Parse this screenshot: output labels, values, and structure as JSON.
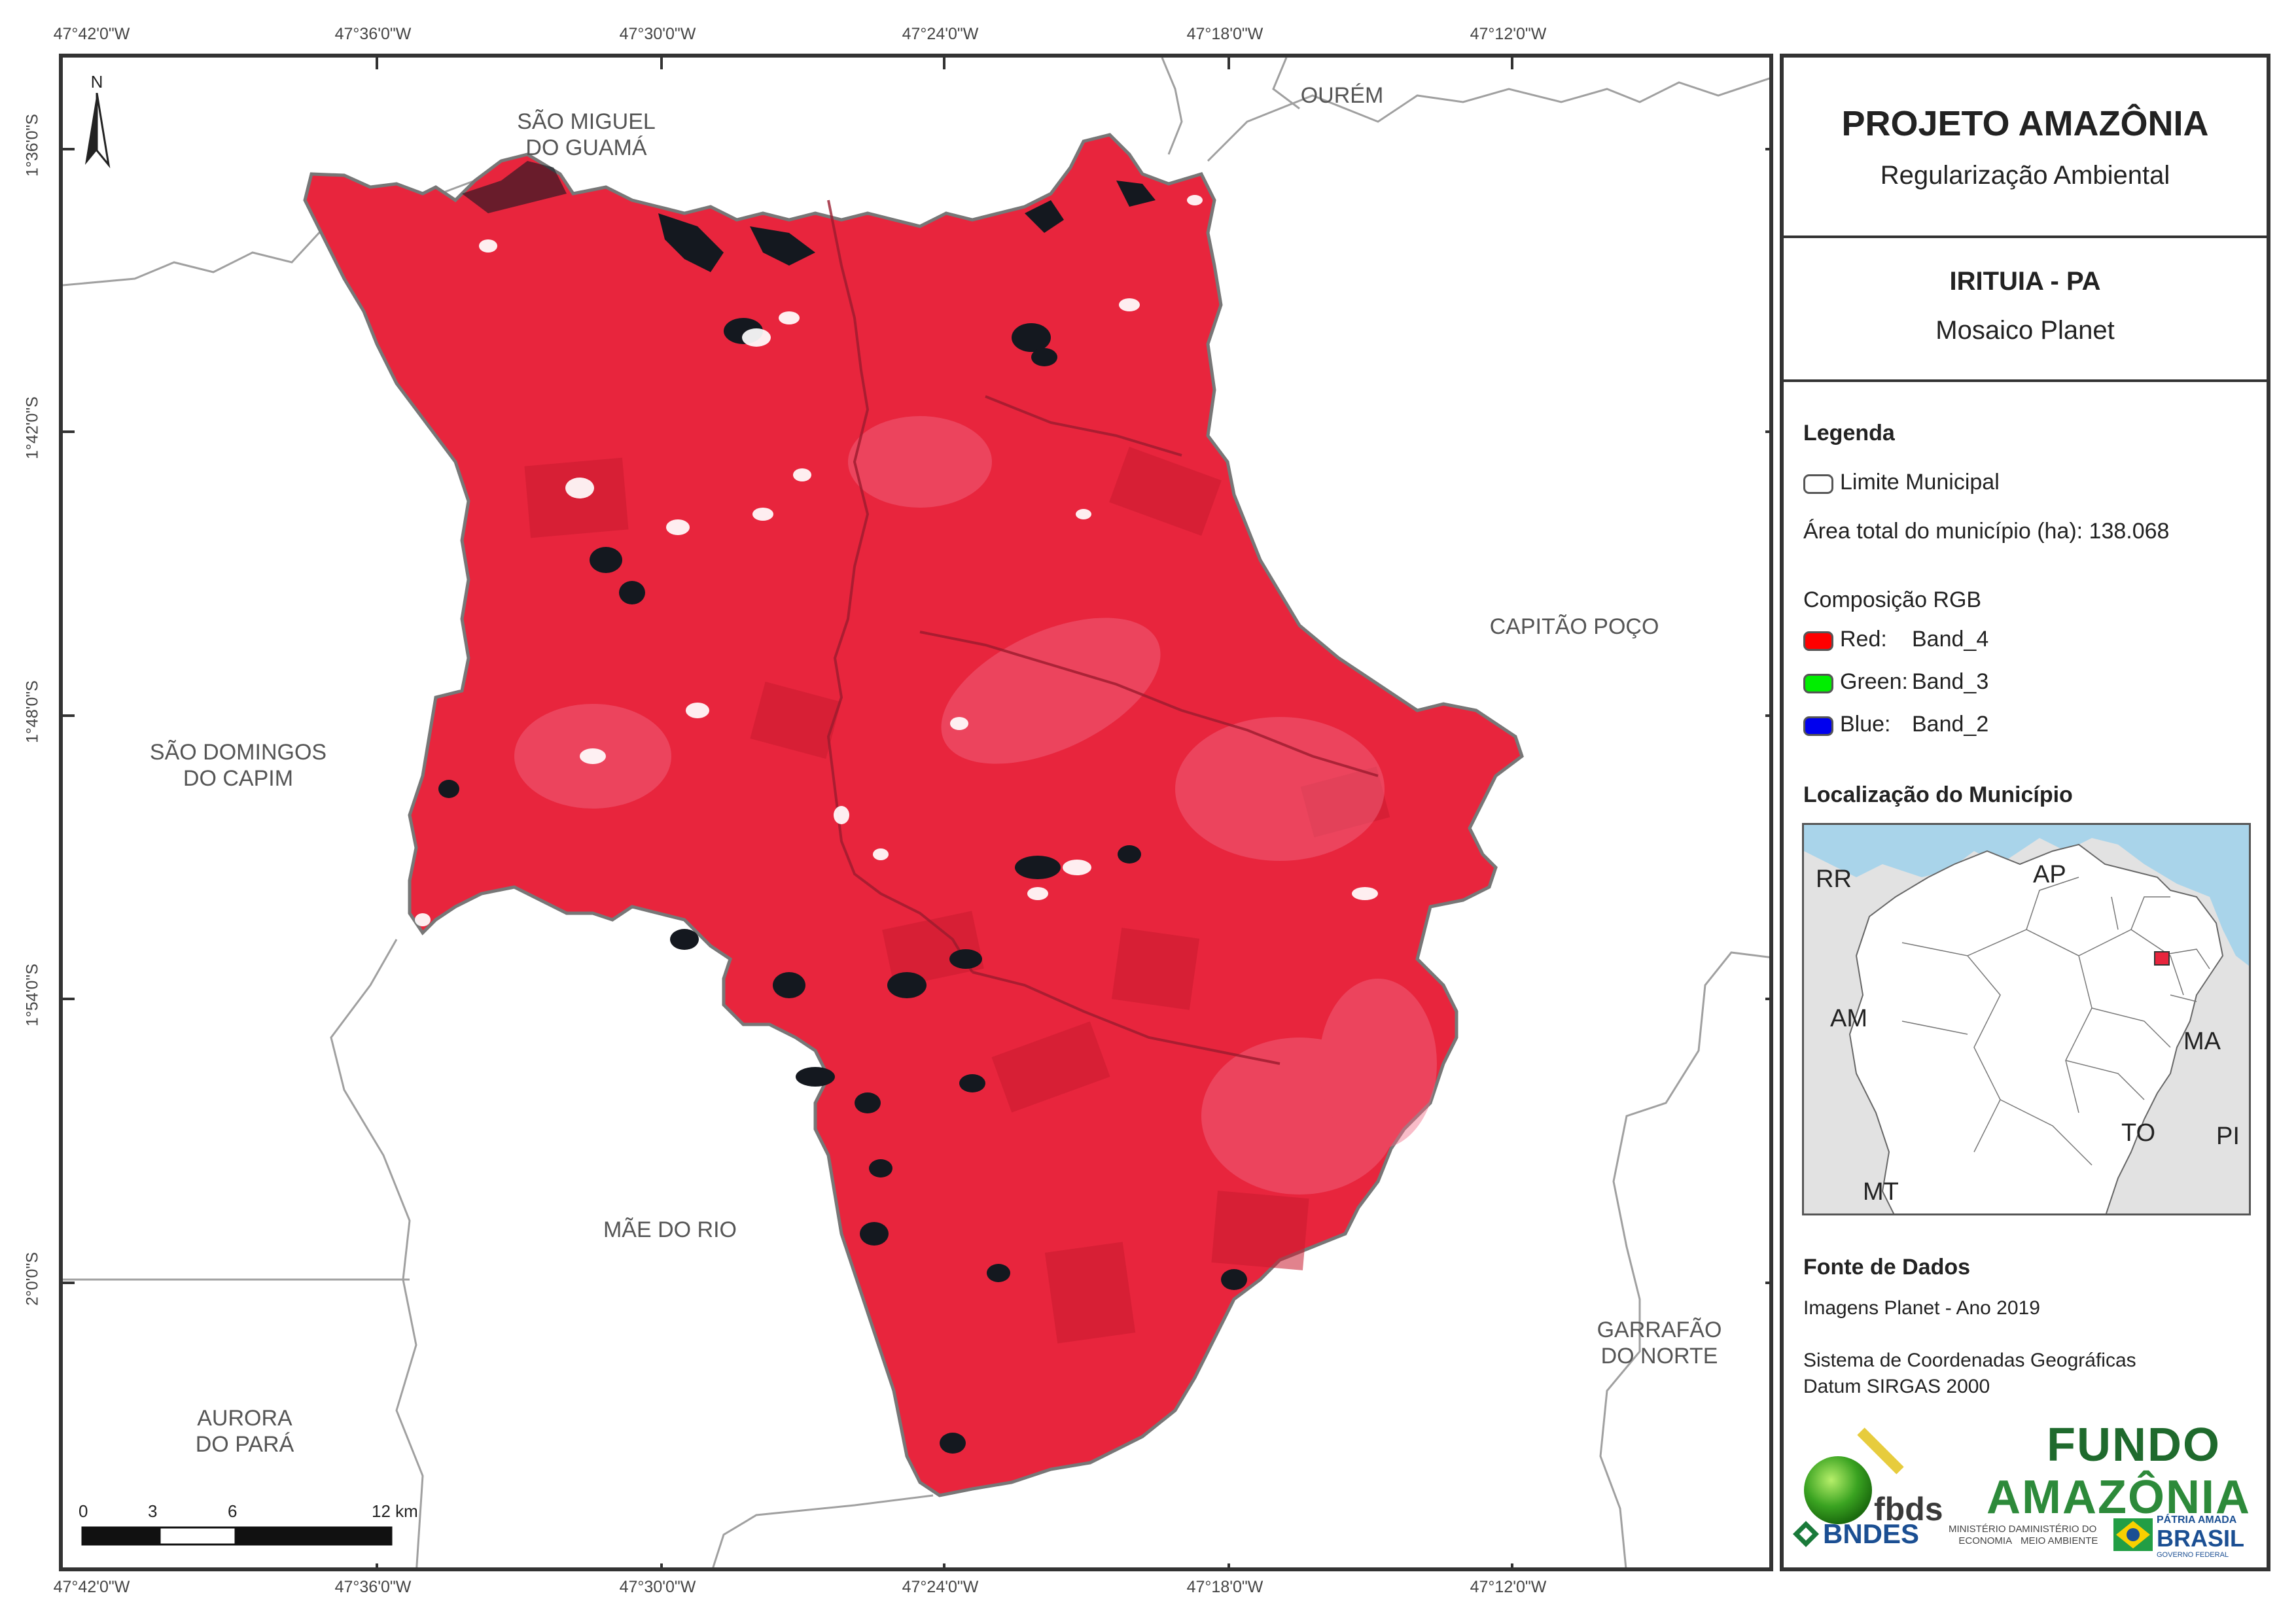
{
  "coordinates": {
    "longitude_ticks": [
      "47°42'0\"W",
      "47°36'0\"W",
      "47°30'0\"W",
      "47°24'0\"W",
      "47°18'0\"W",
      "47°12'0\"W"
    ],
    "latitude_ticks": [
      "1°36'0\"S",
      "1°42'0\"S",
      "1°48'0\"S",
      "1°54'0\"S",
      "2°0'0\"S"
    ]
  },
  "map": {
    "north_label": "N",
    "neighbors": {
      "sao_miguel": "SÃO MIGUEL\nDO GUAMÁ",
      "ourem": "OURÉM",
      "capitao_poco": "CAPITÃO POÇO",
      "sao_domingos": "SÃO DOMINGOS\nDO CAPIM",
      "mae_do_rio": "MÃE DO RIO",
      "aurora": "AURORA\nDO PARÁ",
      "garrafao": "GARRAFÃO\nDO NORTE"
    },
    "scale": {
      "ticks": [
        "0",
        "3",
        "6",
        "12 km"
      ]
    },
    "colors": {
      "municipality_fill": "#e8253d",
      "boundary": "#777777",
      "clouds": "#ffffff",
      "water": "#111111"
    }
  },
  "panel": {
    "title": "PROJETO AMAZÔNIA",
    "subtitle": "Regularização Ambiental",
    "municipality": "IRITUIA - PA",
    "product": "Mosaico Planet",
    "legend_heading": "Legenda",
    "legend_boundary": "Limite Municipal",
    "area_total": "Área total do município (ha): 138.068",
    "rgb_heading": "Composição RGB",
    "bands": [
      {
        "channel": "Red:",
        "band": "Band_4",
        "color": "#ff0000"
      },
      {
        "channel": "Green:",
        "band": "Band_3",
        "color": "#00ee00"
      },
      {
        "channel": "Blue:",
        "band": "Band_2",
        "color": "#0000ee"
      }
    ],
    "location_heading": "Localização do Município",
    "inset_labels": {
      "rr": "RR",
      "ap": "AP",
      "am": "AM",
      "ma": "MA",
      "to": "TO",
      "pi": "PI",
      "mt": "MT"
    },
    "sources_heading": "Fonte de Dados",
    "source_1": "Imagens Planet - Ano 2019",
    "source_2": "Sistema de Coordenadas Geográficas",
    "source_3": "Datum SIRGAS 2000",
    "logos": {
      "fbds": "fbds",
      "fundo_line1": "FUNDO",
      "fundo_line2": "AMAZÔNIA",
      "bndes": "BNDES",
      "ministerio_economia": "MINISTÉRIO DA\nECONOMIA",
      "ministerio_ambiente": "MINISTÉRIO DO\nMEIO AMBIENTE",
      "patria_line1": "PÁTRIA AMADA",
      "patria_line2": "BRASIL",
      "patria_line3": "GOVERNO FEDERAL"
    }
  }
}
